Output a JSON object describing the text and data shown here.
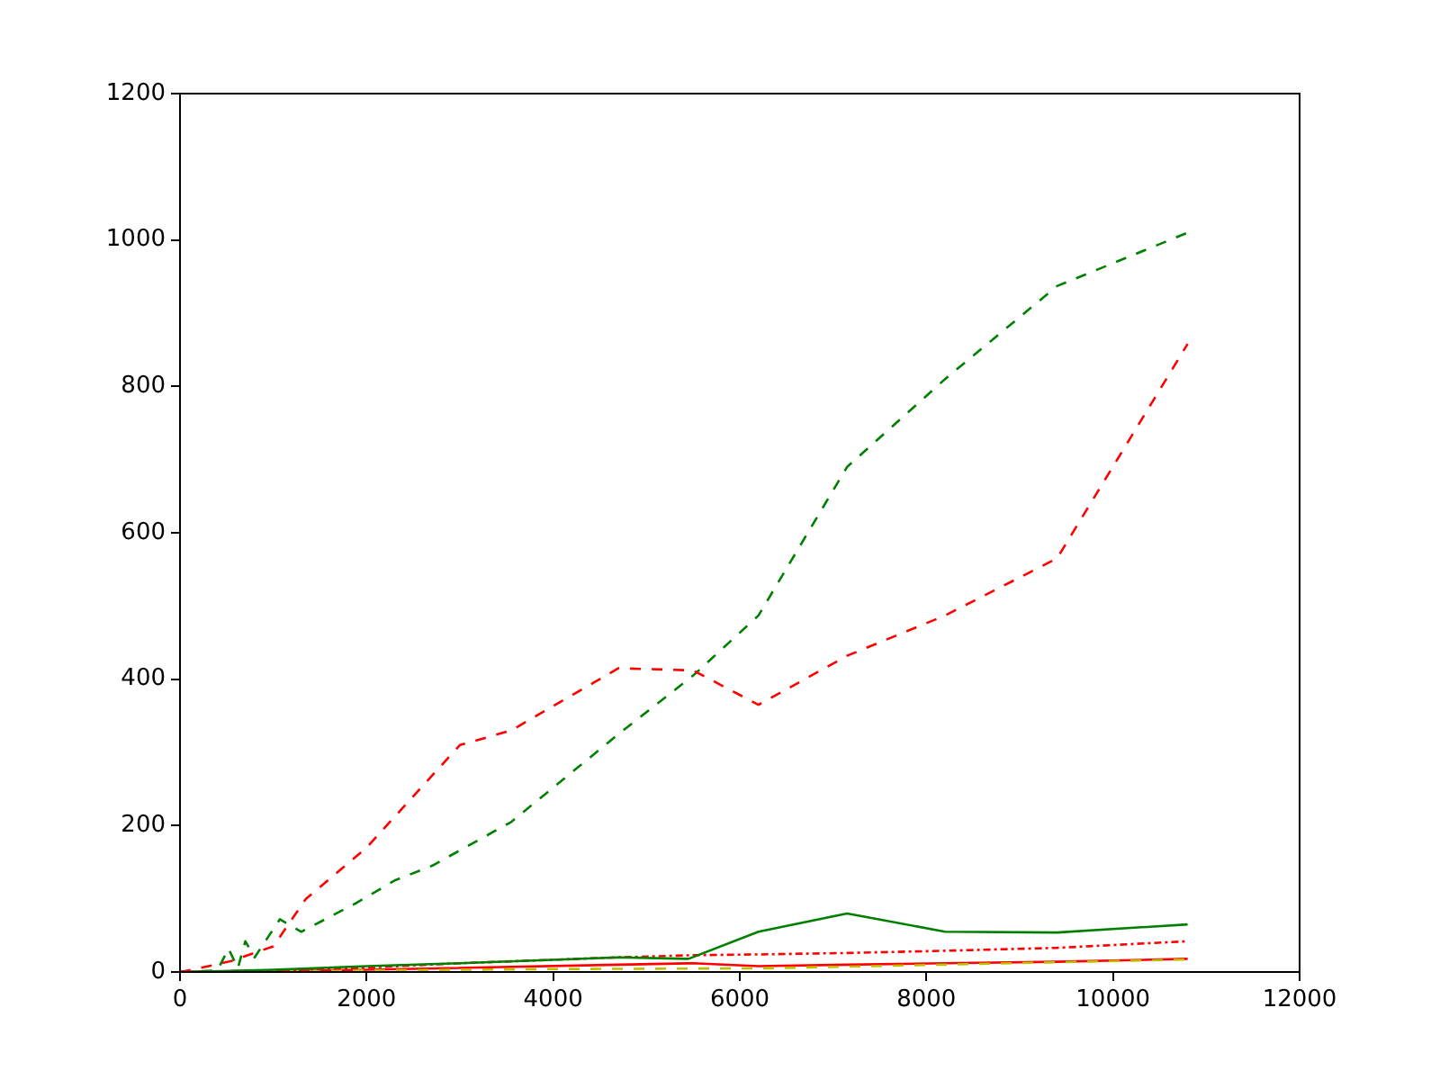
{
  "chart_data": {
    "type": "line",
    "xlim": [
      0,
      12000
    ],
    "xticks": [
      0,
      2000,
      4000,
      6000,
      8000,
      10000,
      12000
    ],
    "ylim": [
      0,
      1200
    ],
    "yticks": [
      0,
      200,
      400,
      600,
      800,
      1000,
      1200
    ],
    "grid": false,
    "legend": false,
    "marker": "none",
    "series": [
      {
        "color": "#ff0000",
        "line_style": "dashed",
        "x": [
          0,
          200,
          550,
          1000,
          1350,
          2000,
          3000,
          3550,
          4700,
          5500,
          6200,
          7150,
          8200,
          9400,
          10800
        ],
        "values": [
          0,
          5,
          15,
          35,
          100,
          170,
          310,
          330,
          415,
          412,
          365,
          432,
          487,
          565,
          858
        ]
      },
      {
        "color": "#008000",
        "line_style": "dashed",
        "x": [
          0,
          400,
          520,
          620,
          700,
          800,
          1070,
          1300,
          1900,
          2300,
          2700,
          3550,
          4700,
          5500,
          6200,
          7150,
          8200,
          9400,
          10800
        ],
        "values": [
          0,
          2,
          32,
          5,
          42,
          20,
          72,
          55,
          95,
          125,
          145,
          205,
          325,
          405,
          487,
          690,
          810,
          937,
          1010
        ]
      },
      {
        "color": "#008000",
        "line_style": "solid",
        "x": [
          0,
          1000,
          2000,
          3000,
          4700,
          5450,
          6200,
          7150,
          8200,
          9400,
          10800
        ],
        "values": [
          0,
          3,
          8,
          12,
          20,
          18,
          55,
          80,
          55,
          54,
          65
        ]
      },
      {
        "color": "#ff0000",
        "line_style": "dashdot",
        "x": [
          0,
          1000,
          2000,
          3000,
          4700,
          5500,
          6200,
          7150,
          8200,
          9400,
          10800
        ],
        "values": [
          0,
          2,
          6,
          12,
          20,
          23,
          24,
          26,
          29,
          33,
          42
        ]
      },
      {
        "color": "#bfbf00",
        "line_style": "dashed",
        "x": [
          0,
          2000,
          4000,
          6200,
          8200,
          10800
        ],
        "values": [
          0,
          2,
          4,
          5,
          10,
          17
        ]
      },
      {
        "color": "#ff0000",
        "line_style": "solid",
        "x": [
          0,
          2000,
          4700,
          5500,
          6200,
          7150,
          8200,
          9400,
          10800
        ],
        "values": [
          0,
          3,
          10,
          12,
          8,
          10,
          12,
          14,
          18
        ]
      }
    ]
  }
}
